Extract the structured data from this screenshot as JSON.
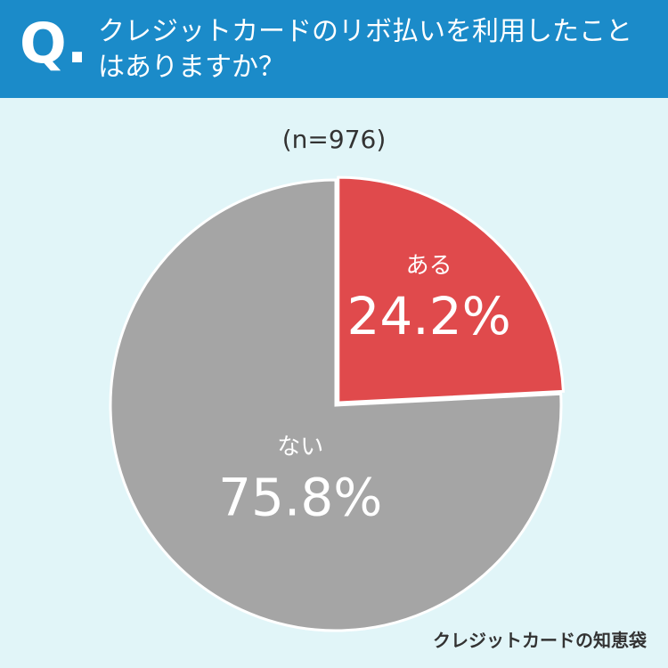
{
  "header": {
    "badge": "Q.",
    "title": "クレジットカードのリボ払いを利用したことはありますか？"
  },
  "chart_data": {
    "type": "pie",
    "subtitle": "(n=976)",
    "categories": [
      "ある",
      "ない"
    ],
    "values": [
      24.2,
      75.8
    ],
    "value_labels": [
      "24.2%",
      "75.8%"
    ],
    "colors": [
      "#e04a4c",
      "#a5a5a5"
    ]
  },
  "footer": {
    "brand": "クレジットカードの知恵袋"
  }
}
